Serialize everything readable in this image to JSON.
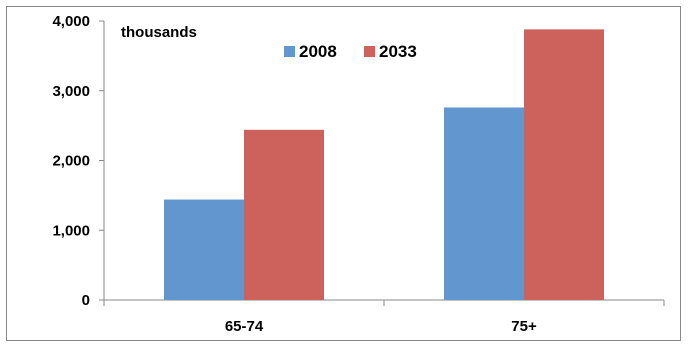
{
  "chart_data": {
    "type": "bar",
    "unit_label": "thousands",
    "categories": [
      "65-74",
      "75+"
    ],
    "series": [
      {
        "name": "2008",
        "values": [
          1440,
          2760
        ],
        "color": "#6196CE"
      },
      {
        "name": "2033",
        "values": [
          2440,
          3880
        ],
        "color": "#CD625C"
      }
    ],
    "ylim": [
      0,
      4000
    ],
    "yticks": [
      0,
      1000,
      2000,
      3000,
      4000
    ],
    "ytick_labels": [
      "0",
      "1,000",
      "2,000",
      "3,000",
      "4,000"
    ],
    "grid": false,
    "legend_position": "top-center"
  }
}
